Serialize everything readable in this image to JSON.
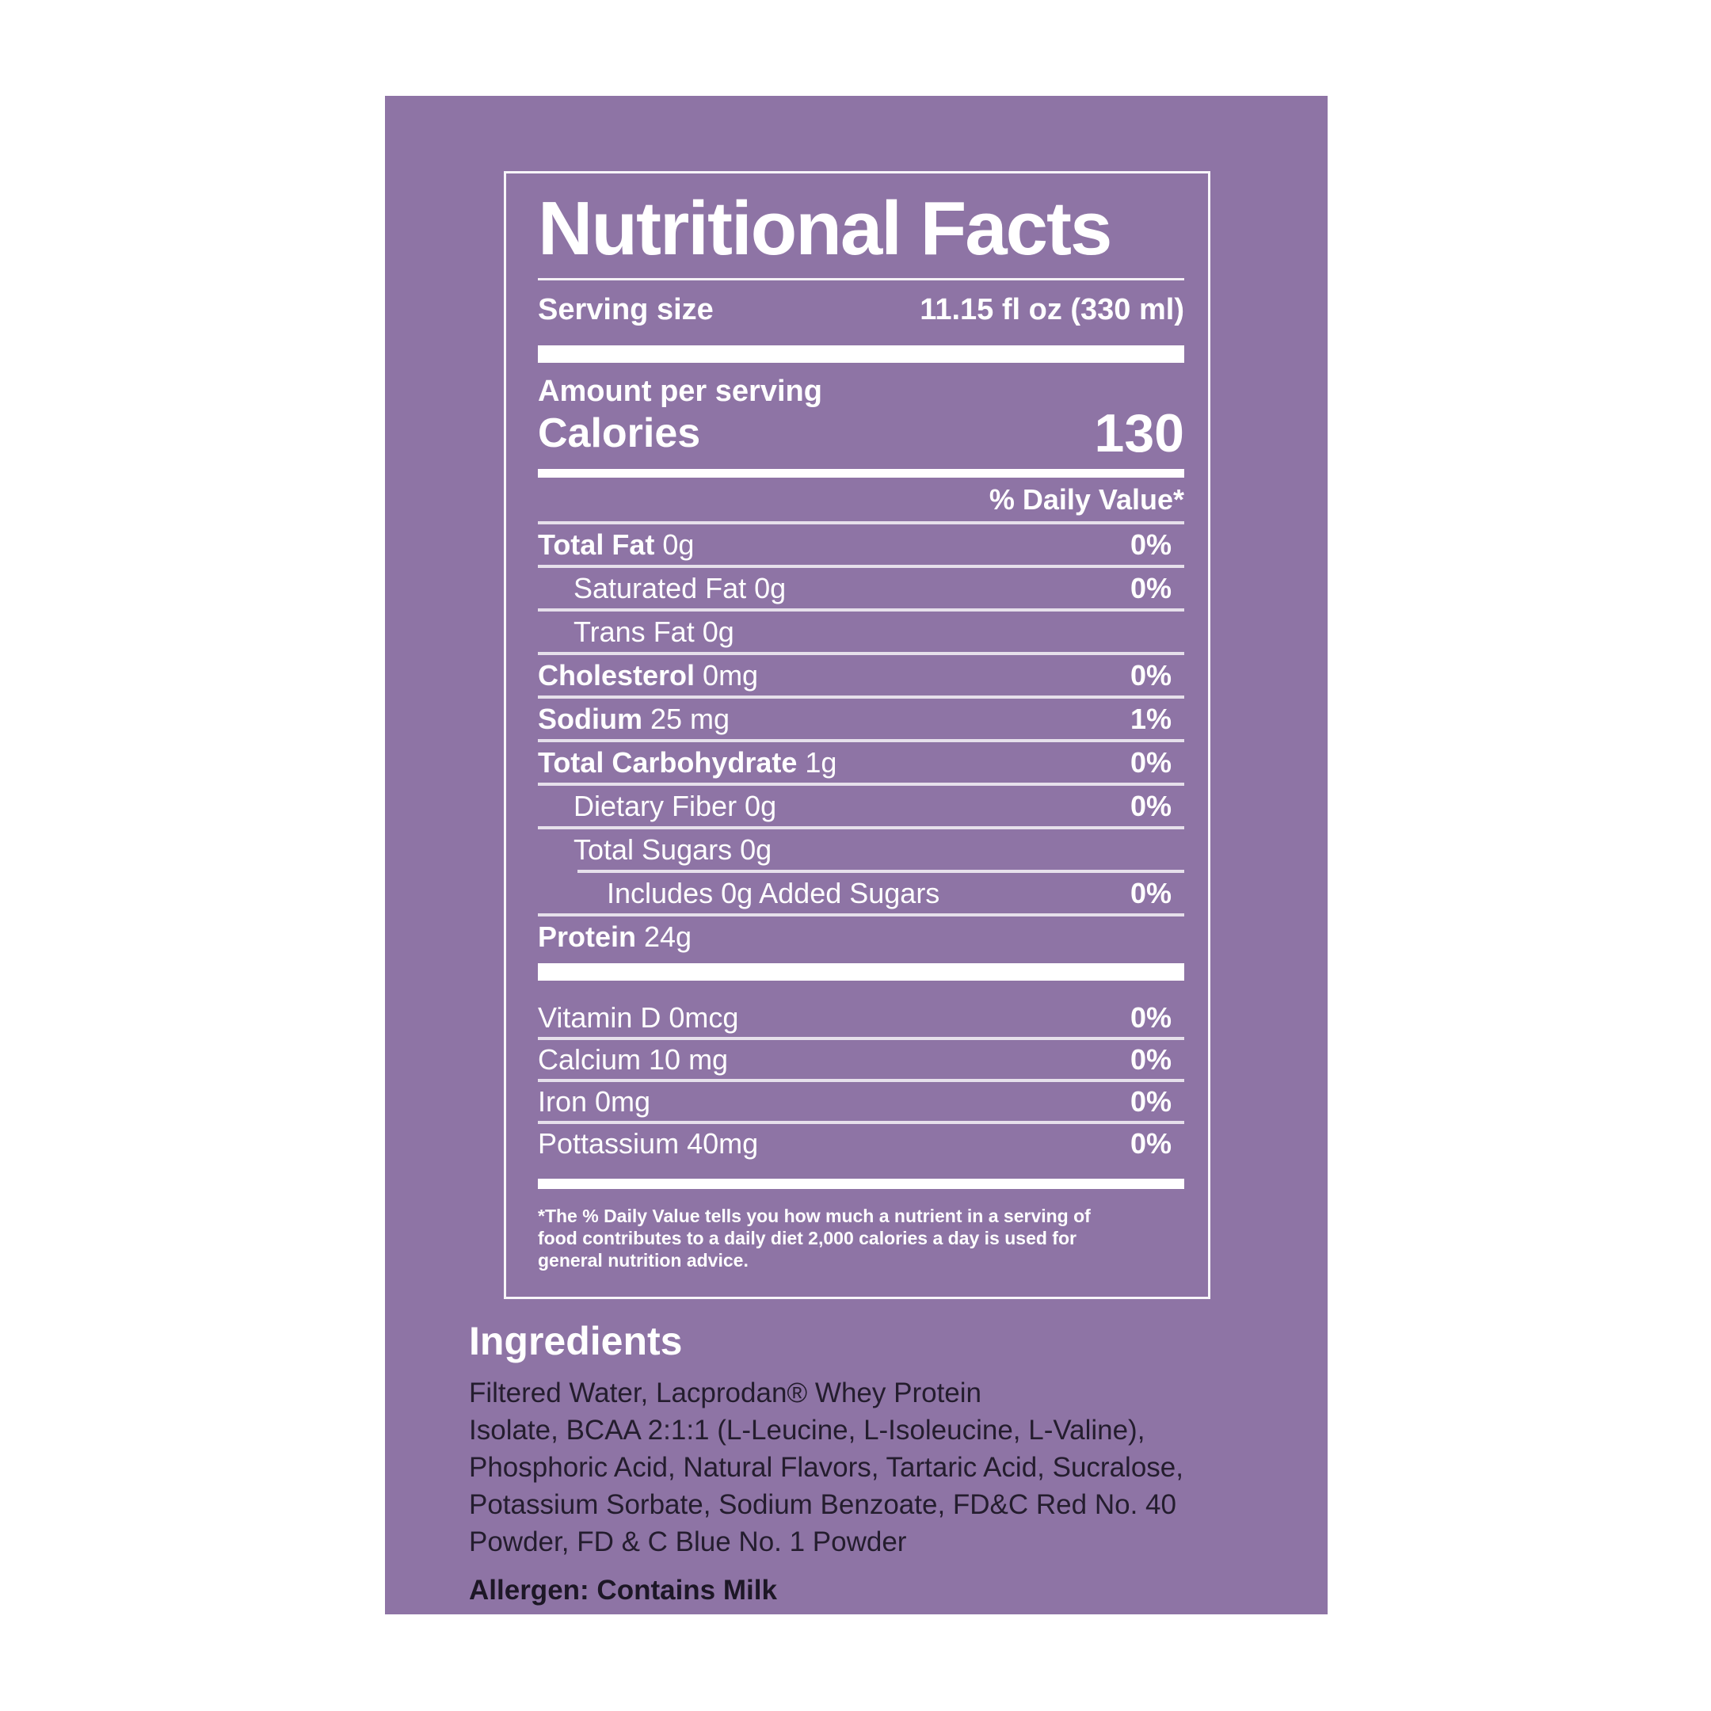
{
  "label": {
    "title": "Nutritional Facts",
    "serving_size_label": "Serving size",
    "serving_size_value": "11.15 fl oz (330 ml)",
    "amount_per_serving": "Amount per serving",
    "calories_label": "Calories",
    "calories_value": "130",
    "daily_value_header": "% Daily Value*",
    "rows": [
      {
        "bold": "Total Fat",
        "rest": "0g",
        "pct": "0%",
        "indent": 0,
        "sep_indented": false
      },
      {
        "bold": "",
        "rest": "Saturated Fat 0g",
        "pct": "0%",
        "indent": 1,
        "sep_indented": false
      },
      {
        "bold": "",
        "rest": "Trans Fat 0g",
        "pct": "",
        "indent": 1,
        "sep_indented": false
      },
      {
        "bold": "Cholesterol",
        "rest": "0mg",
        "pct": "0%",
        "indent": 0,
        "sep_indented": false
      },
      {
        "bold": "Sodium",
        "rest": "25 mg",
        "pct": "1%",
        "indent": 0,
        "sep_indented": false
      },
      {
        "bold": "Total Carbohydrate",
        "rest": "1g",
        "pct": "0%",
        "indent": 0,
        "sep_indented": false
      },
      {
        "bold": "",
        "rest": "Dietary Fiber 0g",
        "pct": "0%",
        "indent": 1,
        "sep_indented": false
      },
      {
        "bold": "",
        "rest": "Total Sugars 0g",
        "pct": "",
        "indent": 1,
        "sep_indented": false
      },
      {
        "bold": "",
        "rest": "Includes 0g Added Sugars",
        "pct": "0%",
        "indent": 2,
        "sep_indented": true
      },
      {
        "bold": "Protein",
        "rest": "24g",
        "pct": "",
        "indent": 0,
        "sep_indented": false
      }
    ],
    "micronutrients": [
      {
        "name": "Vitamin D 0mcg",
        "pct": "0%"
      },
      {
        "name": "Calcium 10 mg",
        "pct": "0%"
      },
      {
        "name": "Iron 0mg",
        "pct": "0%"
      },
      {
        "name": "Pottassium 40mg",
        "pct": "0%"
      }
    ],
    "footnote_lines": [
      "*The % Daily Value tells you how much a nutrient in a serving of",
      "food contributes to a daily diet 2,000 calories a day is used for",
      "general nutrition advice."
    ]
  },
  "ingredients": {
    "heading": "Ingredients",
    "lines": [
      "Filtered Water, Lacprodan® Whey Protein",
      "Isolate, BCAA 2:1:1 (L-Leucine, L-Isoleucine, L-Valine),",
      "Phosphoric Acid, Natural Flavors, Tartaric Acid, Sucralose,",
      "Potassium Sorbate, Sodium Benzoate, FD&C Red No. 40",
      "Powder, FD & C Blue No. 1 Powder"
    ],
    "allergen": "Allergen: Contains Milk"
  },
  "colors": {
    "background": "#ffffff",
    "card_purple": "#8e74a5",
    "text_white": "#ffffff",
    "text_dark": "#241d2e",
    "separator": "#dccfe6"
  }
}
